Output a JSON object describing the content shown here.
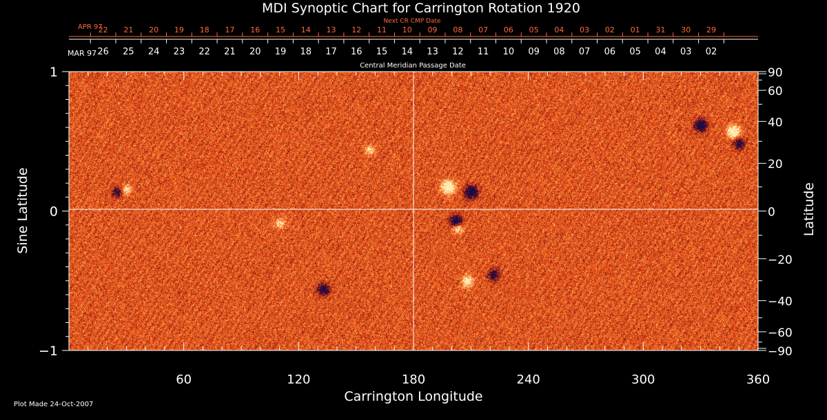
{
  "chart_data": {
    "type": "heatmap",
    "title": "MDI Synoptic Chart for Carrington Rotation 1920",
    "xlabel": "Carrington Longitude",
    "ylabel_left": "Sine Latitude",
    "ylabel_right": "Latitude",
    "xlim": [
      0,
      360
    ],
    "ylim": [
      -1,
      1
    ],
    "x_ticks": [
      60,
      120,
      180,
      240,
      300,
      360
    ],
    "y_ticks_left": [
      {
        "v": 1,
        "label": "1"
      },
      {
        "v": 0,
        "label": "0"
      },
      {
        "v": -1,
        "label": "−1"
      }
    ],
    "y_ticks_right": [
      {
        "lat": 90,
        "label": "90"
      },
      {
        "lat": 60,
        "label": "60"
      },
      {
        "lat": 40,
        "label": "40"
      },
      {
        "lat": 20,
        "label": "20"
      },
      {
        "lat": 0,
        "label": "0"
      },
      {
        "lat": -20,
        "label": "−20"
      },
      {
        "lat": -40,
        "label": "−40"
      },
      {
        "lat": -60,
        "label": "−60"
      },
      {
        "lat": -90,
        "label": "−90"
      }
    ],
    "crosshair": {
      "x": 180,
      "y": 0
    },
    "colors": {
      "field": "#e8531a",
      "positive": "#fff2c0",
      "negative": "#1a0a4a",
      "axis": "#ffffff",
      "next_axis": "#ff6a3c"
    },
    "next_cr_axis": {
      "caption": "Next CR CMP Date",
      "month_label": "APR 97",
      "labels": [
        "22",
        "21",
        "20",
        "19",
        "18",
        "17",
        "16",
        "15",
        "14",
        "13",
        "12",
        "11",
        "10",
        "09",
        "08",
        "07",
        "06",
        "05",
        "04",
        "03",
        "02",
        "01",
        "31",
        "30",
        "29"
      ]
    },
    "cmp_axis": {
      "caption": "Central Meridian Passage Date",
      "month_label": "MAR 97",
      "labels": [
        "26",
        "25",
        "24",
        "23",
        "22",
        "21",
        "20",
        "19",
        "18",
        "17",
        "16",
        "15",
        "14",
        "13",
        "12",
        "11",
        "10",
        "09",
        "08",
        "07",
        "06",
        "05",
        "04",
        "03",
        "02"
      ]
    },
    "active_regions": [
      {
        "lon": 25,
        "lat": 8,
        "polarity": "negative",
        "strength": 0.6
      },
      {
        "lon": 30,
        "lat": 9,
        "polarity": "positive",
        "strength": 0.5
      },
      {
        "lon": 157,
        "lat": 26,
        "polarity": "positive",
        "strength": 0.5
      },
      {
        "lon": 110,
        "lat": -5,
        "polarity": "positive",
        "strength": 0.5
      },
      {
        "lon": 133,
        "lat": -34,
        "polarity": "negative",
        "strength": 0.8
      },
      {
        "lon": 198,
        "lat": 10,
        "polarity": "positive",
        "strength": 1.0
      },
      {
        "lon": 210,
        "lat": 8,
        "polarity": "negative",
        "strength": 1.0
      },
      {
        "lon": 202,
        "lat": -4,
        "polarity": "negative",
        "strength": 0.9
      },
      {
        "lon": 203,
        "lat": -7,
        "polarity": "positive",
        "strength": 0.6
      },
      {
        "lon": 208,
        "lat": -30,
        "polarity": "positive",
        "strength": 0.7
      },
      {
        "lon": 222,
        "lat": -27,
        "polarity": "negative",
        "strength": 0.7
      },
      {
        "lon": 330,
        "lat": 38,
        "polarity": "negative",
        "strength": 0.9
      },
      {
        "lon": 347,
        "lat": 35,
        "polarity": "positive",
        "strength": 0.9
      },
      {
        "lon": 350,
        "lat": 29,
        "polarity": "negative",
        "strength": 0.7
      }
    ]
  },
  "footer": {
    "plot_made": "Plot Made 24-Oct-2007"
  }
}
